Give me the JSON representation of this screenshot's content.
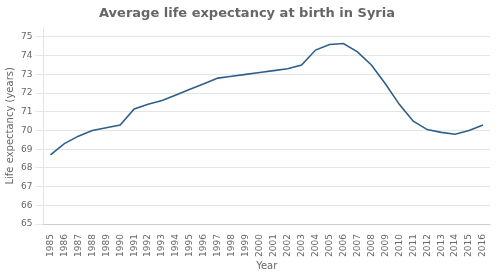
{
  "chart_data": {
    "type": "line",
    "title": "Average life expectancy at birth in Syria",
    "xlabel": "Year",
    "ylabel": "Life expectancy (years)",
    "x": [
      1985,
      1986,
      1987,
      1988,
      1989,
      1990,
      1991,
      1992,
      1993,
      1994,
      1995,
      1996,
      1997,
      1998,
      1999,
      2000,
      2001,
      2002,
      2003,
      2004,
      2005,
      2006,
      2007,
      2008,
      2009,
      2010,
      2011,
      2012,
      2013,
      2014,
      2015,
      2016
    ],
    "values": [
      68.7,
      69.3,
      69.7,
      70.0,
      70.15,
      70.3,
      71.15,
      71.4,
      71.6,
      71.9,
      72.2,
      72.5,
      72.8,
      72.9,
      73.0,
      73.1,
      73.2,
      73.3,
      73.5,
      74.3,
      74.6,
      74.65,
      74.2,
      73.5,
      72.5,
      71.4,
      70.5,
      70.05,
      69.9,
      69.8,
      70.0,
      70.3
    ],
    "color": "#2e5f8a",
    "xlim": [
      1984.5,
      2016.5
    ],
    "xticks": [
      1985,
      1986,
      1987,
      1988,
      1989,
      1990,
      1991,
      1992,
      1993,
      1994,
      1995,
      1996,
      1997,
      1998,
      1999,
      2000,
      2001,
      2002,
      2003,
      2004,
      2005,
      2006,
      2007,
      2008,
      2009,
      2010,
      2011,
      2012,
      2013,
      2014,
      2015,
      2016
    ],
    "ylim": [
      65,
      75.5
    ],
    "yticks": [
      65,
      66,
      67,
      68,
      69,
      70,
      71,
      72,
      73,
      74,
      75
    ],
    "grid": "y"
  }
}
